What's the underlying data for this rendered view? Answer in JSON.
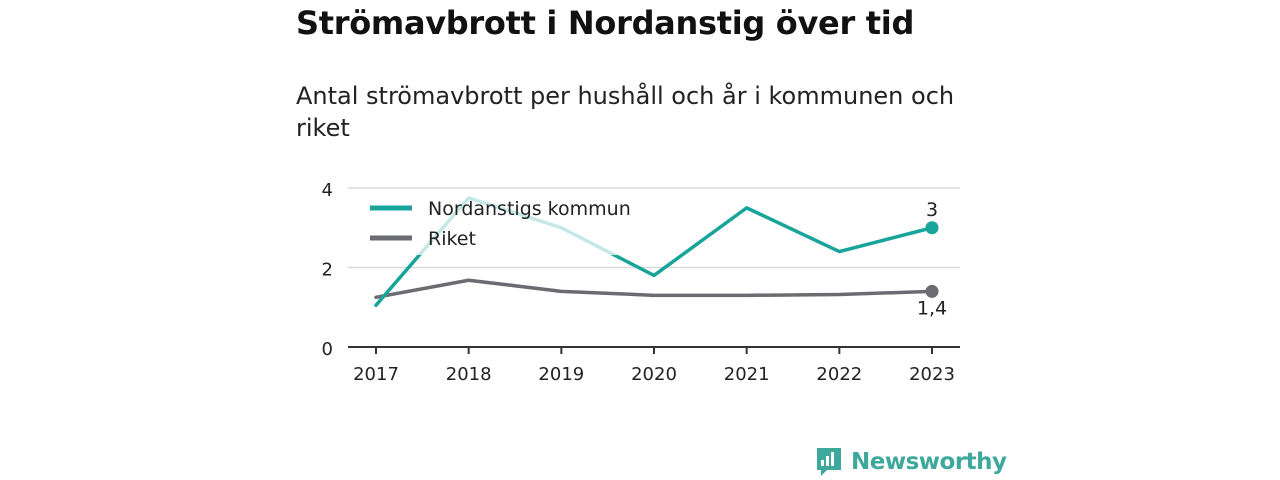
{
  "header": {
    "title": "Strömavbrott i Nordanstig över tid",
    "subtitle": "Antal strömavbrott per hushåll och år i kommunen och riket"
  },
  "chart_data": {
    "type": "line",
    "title": "Strömavbrott i Nordanstig över tid",
    "subtitle": "Antal strömavbrott per hushåll och år i kommunen och riket",
    "x": [
      "2017",
      "2018",
      "2019",
      "2020",
      "2021",
      "2022",
      "2023"
    ],
    "y_ticks": [
      "0",
      "2",
      "4"
    ],
    "ylim": [
      0,
      4
    ],
    "grid": true,
    "legend_position": "top-left",
    "series": [
      {
        "name": "Nordanstigs kommun",
        "color": "#18a49a",
        "values": [
          1.05,
          3.75,
          3.0,
          1.8,
          3.5,
          2.4,
          3.0
        ],
        "end_label": "3"
      },
      {
        "name": "Riket",
        "color": "#6b6b72",
        "values": [
          1.25,
          1.68,
          1.4,
          1.3,
          1.3,
          1.32,
          1.4
        ],
        "end_label": "1,4"
      }
    ]
  },
  "footer": {
    "brand": "Newsworthy",
    "brand_color": "#3ea89c"
  }
}
